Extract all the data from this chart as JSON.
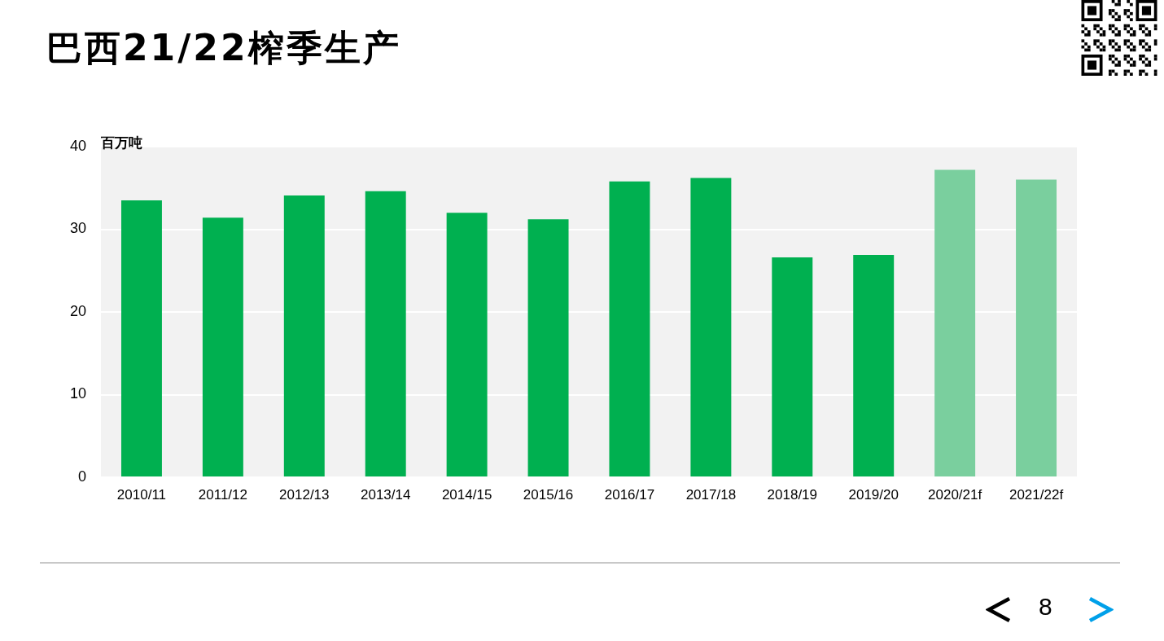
{
  "chart_data": {
    "type": "bar",
    "title": "巴西21/22榨季生产",
    "ylabel": "百万吨",
    "categories": [
      "2010/11",
      "2011/12",
      "2012/13",
      "2013/14",
      "2014/15",
      "2015/16",
      "2016/17",
      "2017/18",
      "2018/19",
      "2019/20",
      "2020/21f",
      "2021/22f"
    ],
    "values": [
      33.5,
      31.4,
      34.1,
      34.6,
      32.0,
      31.2,
      35.8,
      36.2,
      26.6,
      26.9,
      37.2,
      36.0
    ],
    "colors": [
      "#00b050",
      "#00b050",
      "#00b050",
      "#00b050",
      "#00b050",
      "#00b050",
      "#00b050",
      "#00b050",
      "#00b050",
      "#00b050",
      "#7acf9e",
      "#7acf9e"
    ],
    "ylim": [
      0,
      40
    ],
    "yticks": [
      0,
      10,
      20,
      30,
      40
    ],
    "grid": "y",
    "annotations": [
      "8"
    ]
  }
}
